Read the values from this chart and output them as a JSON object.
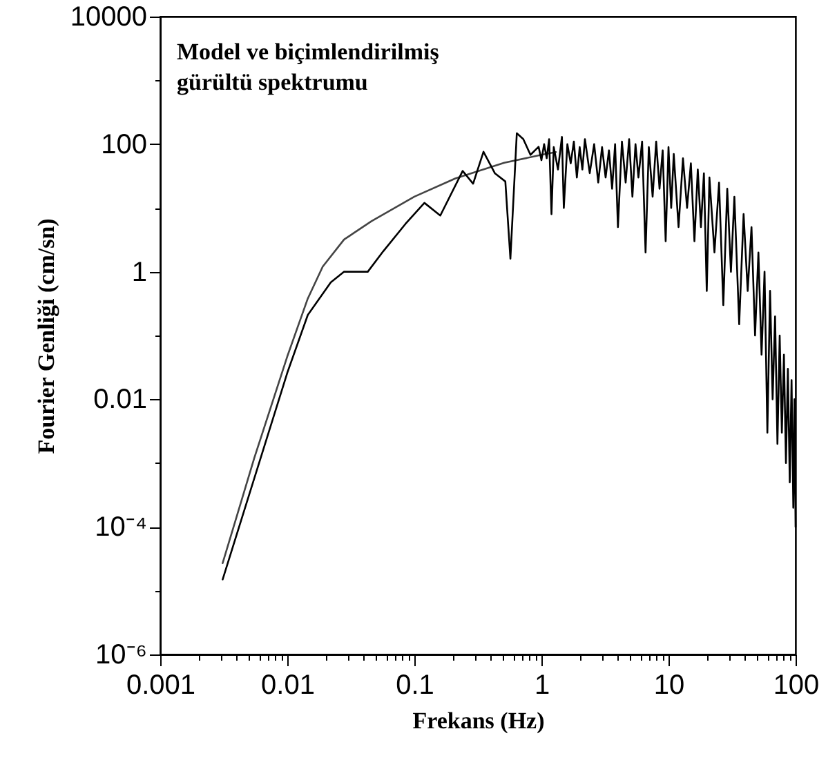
{
  "chart_data": {
    "type": "line",
    "xlabel": "Frekans (Hz)",
    "ylabel": "Fourier Genliği (cm/sn)",
    "log": "xy",
    "annotations": [
      "Model ve  biçimlendirilmiş\ngürültü spektrumu"
    ],
    "xlim": [
      0.001,
      100
    ],
    "ylim": [
      1e-06,
      10000
    ],
    "xticks": [
      0.001,
      {
        "value": 0.002,
        "label": null
      },
      {
        "value": 0.003,
        "label": null
      },
      {
        "value": 0.004,
        "label": null
      },
      {
        "value": 0.005,
        "label": null
      },
      {
        "value": 0.006,
        "label": null
      },
      {
        "value": 0.007,
        "label": null
      },
      {
        "value": 0.008,
        "label": null
      },
      {
        "value": 0.009,
        "label": null
      },
      0.01,
      {
        "value": 0.02,
        "label": null
      },
      {
        "value": 0.03,
        "label": null
      },
      {
        "value": 0.04,
        "label": null
      },
      {
        "value": 0.05,
        "label": null
      },
      {
        "value": 0.06,
        "label": null
      },
      {
        "value": 0.07,
        "label": null
      },
      {
        "value": 0.08,
        "label": null
      },
      {
        "value": 0.09,
        "label": null
      },
      0.1,
      {
        "value": 0.2,
        "label": null
      },
      {
        "value": 0.3,
        "label": null
      },
      {
        "value": 0.4,
        "label": null
      },
      {
        "value": 0.5,
        "label": null
      },
      {
        "value": 0.6,
        "label": null
      },
      {
        "value": 0.7,
        "label": null
      },
      {
        "value": 0.8,
        "label": null
      },
      {
        "value": 0.9,
        "label": null
      },
      1,
      {
        "value": 2,
        "label": null
      },
      {
        "value": 3,
        "label": null
      },
      {
        "value": 4,
        "label": null
      },
      {
        "value": 5,
        "label": null
      },
      {
        "value": 6,
        "label": null
      },
      {
        "value": 7,
        "label": null
      },
      {
        "value": 8,
        "label": null
      },
      {
        "value": 9,
        "label": null
      },
      10,
      {
        "value": 20,
        "label": null
      },
      {
        "value": 30,
        "label": null
      },
      {
        "value": 40,
        "label": null
      },
      {
        "value": 50,
        "label": null
      },
      {
        "value": 60,
        "label": null
      },
      {
        "value": 70,
        "label": null
      },
      {
        "value": 80,
        "label": null
      },
      {
        "value": 90,
        "label": null
      },
      100
    ],
    "yticks": [
      {
        "value": 1e-06,
        "label": "10⁻⁶"
      },
      {
        "value": 1e-05,
        "label": null
      },
      {
        "value": 0.0001,
        "label": "10⁻⁴"
      },
      {
        "value": 0.001,
        "label": null
      },
      0.01,
      {
        "value": 0.1,
        "label": null
      },
      1,
      {
        "value": 10,
        "label": null
      },
      100,
      {
        "value": 1000,
        "label": null
      },
      10000
    ],
    "series": [
      {
        "color": "#444444",
        "x": [
          0.0031,
          0.0055,
          0.01,
          0.0145,
          0.019,
          0.028,
          0.046,
          0.1,
          0.21,
          0.51,
          1.0,
          1.3
        ],
        "values": [
          2.7e-05,
          0.0012,
          0.047,
          0.38,
          1.2,
          3.2,
          6.2,
          15,
          29,
          51,
          68,
          75
        ]
      },
      {
        "color": "#000000",
        "x": [
          0.0031,
          0.01,
          0.0145,
          0.022,
          0.028,
          0.043,
          0.057,
          0.085,
          0.12,
          0.16,
          0.24,
          0.29,
          0.35,
          0.43,
          0.52,
          0.57,
          0.64,
          0.72,
          0.82,
          0.95,
          1.0,
          1.05,
          1.1,
          1.15,
          1.2,
          1.25,
          1.35,
          1.45,
          1.5,
          1.6,
          1.7,
          1.8,
          1.9,
          2.0,
          2.1,
          2.2,
          2.4,
          2.6,
          2.8,
          3.0,
          3.2,
          3.4,
          3.6,
          3.8,
          4.0,
          4.3,
          4.6,
          4.9,
          5.2,
          5.5,
          5.8,
          6.2,
          6.6,
          7.0,
          7.5,
          8.0,
          8.5,
          9.0,
          9.5,
          10,
          10.5,
          11,
          12,
          13,
          14,
          15,
          16,
          17,
          18,
          19,
          20,
          21,
          23,
          25,
          27,
          29,
          31,
          33,
          36,
          39,
          42,
          45,
          48,
          51,
          54,
          57,
          60,
          63,
          66,
          69,
          72,
          75,
          78,
          81,
          84,
          87,
          90,
          93,
          96,
          98,
          100
        ],
        "values": [
          1.5e-05,
          0.026,
          0.21,
          0.68,
          1.0,
          1.0,
          2.1,
          5.6,
          12,
          7.6,
          38,
          24,
          76,
          35,
          26,
          1.6,
          148,
          120,
          68,
          91,
          56,
          100,
          60,
          120,
          8,
          90,
          40,
          130,
          10,
          100,
          50,
          110,
          30,
          90,
          40,
          120,
          35,
          100,
          25,
          90,
          30,
          80,
          20,
          100,
          5,
          110,
          25,
          120,
          15,
          100,
          30,
          110,
          2,
          90,
          15,
          110,
          20,
          80,
          3,
          90,
          10,
          70,
          5,
          60,
          10,
          50,
          3,
          40,
          5,
          35,
          0.5,
          30,
          2,
          25,
          0.3,
          20,
          1,
          15,
          0.15,
          8,
          0.5,
          5,
          0.1,
          2,
          0.05,
          1,
          0.003,
          0.5,
          0.01,
          0.2,
          0.002,
          0.1,
          0.003,
          0.05,
          0.001,
          0.03,
          0.0005,
          0.02,
          0.0002,
          0.01,
          0.0001
        ]
      }
    ]
  }
}
